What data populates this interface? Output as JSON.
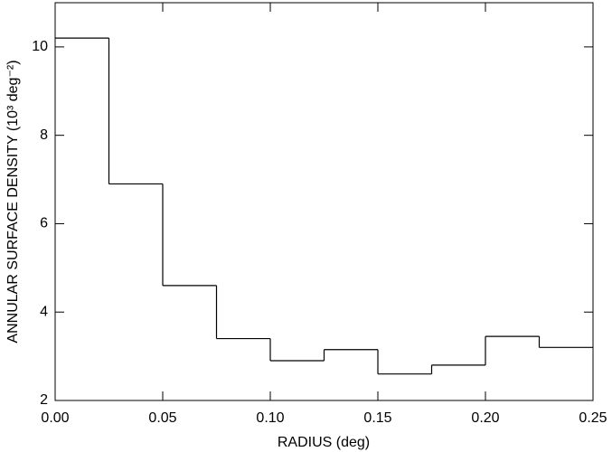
{
  "chart_data": {
    "type": "histogram",
    "xlabel": "RADIUS (deg)",
    "ylabel": "ANNULAR SURFACE DENSITY (10³ deg⁻²)",
    "bins": [
      0,
      0.025,
      0.05,
      0.075,
      0.1,
      0.125,
      0.15,
      0.175,
      0.2,
      0.225,
      0.25
    ],
    "values": [
      10.2,
      6.9,
      4.6,
      3.4,
      2.9,
      3.15,
      2.6,
      2.8,
      3.45,
      3.2
    ],
    "color": "#000000",
    "xlim": [
      0,
      0.25
    ],
    "xticks": [
      {
        "value": 0,
        "label": "0.00"
      },
      {
        "value": 0.05,
        "label": "0.05"
      },
      {
        "value": 0.1,
        "label": "0.10"
      },
      {
        "value": 0.15,
        "label": "0.15"
      },
      {
        "value": 0.2,
        "label": "0.20"
      },
      {
        "value": 0.25,
        "label": "0.25"
      }
    ],
    "ylim": [
      2,
      11
    ],
    "yticks": [
      2,
      4,
      6,
      8,
      10
    ]
  }
}
